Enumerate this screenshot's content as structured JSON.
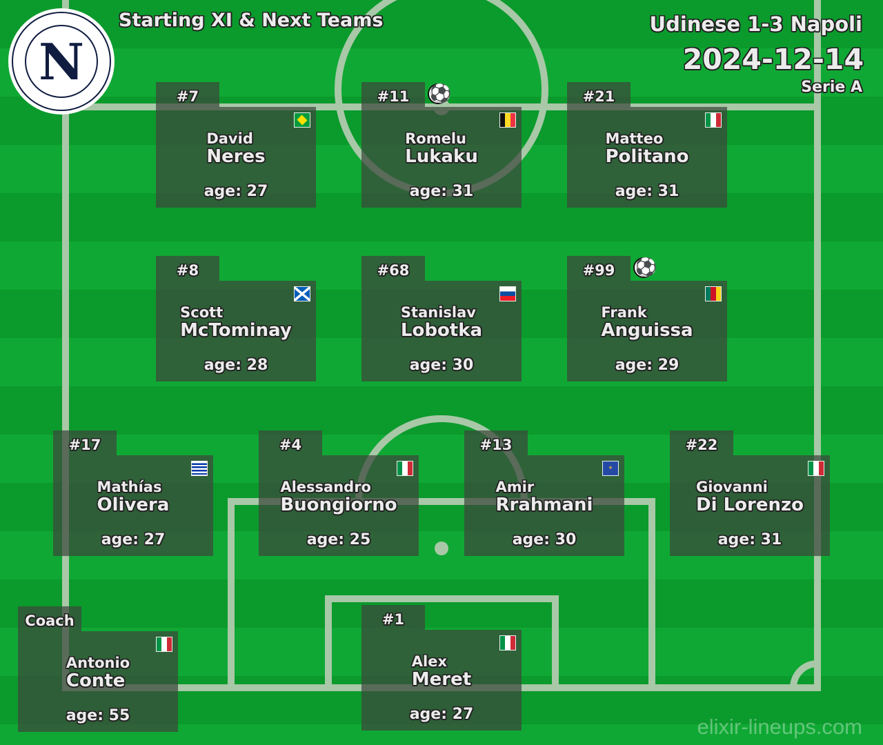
{
  "header": {
    "title": "Starting XI & Next Teams",
    "match": "Udinese 1-3 Napoli",
    "date": "2024-12-14",
    "competition": "Serie A",
    "logo_letter": "N"
  },
  "watermark": "elixir-lineups.com",
  "colors": {
    "pitch_dark": "#0b9a2c",
    "pitch_light": "#10a834",
    "card": "#3c463c",
    "navy": "#101c40"
  },
  "players": [
    {
      "number": "#7",
      "first": "David",
      "last": "Neres",
      "age": "age: 27",
      "flag": "brazil",
      "ball": false
    },
    {
      "number": "#11",
      "first": "Romelu",
      "last": "Lukaku",
      "age": "age: 31",
      "flag": "belgium",
      "ball": true
    },
    {
      "number": "#21",
      "first": "Matteo",
      "last": "Politano",
      "age": "age: 31",
      "flag": "italy",
      "ball": false
    },
    {
      "number": "#8",
      "first": "Scott",
      "last": "McTominay",
      "age": "age: 28",
      "flag": "scotland",
      "ball": false
    },
    {
      "number": "#68",
      "first": "Stanislav",
      "last": "Lobotka",
      "age": "age: 30",
      "flag": "slovakia",
      "ball": false
    },
    {
      "number": "#99",
      "first": "Frank",
      "last": "Anguissa",
      "age": "age: 29",
      "flag": "cameroon",
      "ball": true
    },
    {
      "number": "#17",
      "first": "Mathías",
      "last": "Olivera",
      "age": "age: 27",
      "flag": "uruguay",
      "ball": false
    },
    {
      "number": "#4",
      "first": "Alessandro",
      "last": "Buongiorno",
      "age": "age: 25",
      "flag": "italy",
      "ball": false
    },
    {
      "number": "#13",
      "first": "Amir",
      "last": "Rrahmani",
      "age": "age: 30",
      "flag": "kosovo",
      "ball": false
    },
    {
      "number": "#22",
      "first": "Giovanni",
      "last": "Di Lorenzo",
      "age": "age: 31",
      "flag": "italy",
      "ball": false
    },
    {
      "number": "Coach",
      "first": "Antonio",
      "last": "Conte",
      "age": "age: 55",
      "flag": "italy",
      "ball": false
    },
    {
      "number": "#1",
      "first": "Alex",
      "last": "Meret",
      "age": "age: 27",
      "flag": "italy",
      "ball": false
    }
  ]
}
